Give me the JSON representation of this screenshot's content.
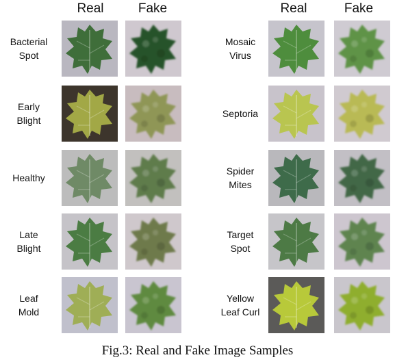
{
  "columns": {
    "real": "Real",
    "fake": "Fake"
  },
  "caption": "Fig.3: Real and Fake Image Samples",
  "left": [
    {
      "line1": "Bacterial",
      "line2": "Spot",
      "real_leaf": "#3f6e3a",
      "real_bg": "#b9b7c0",
      "fake_leaf": "#27532a",
      "fake_bg": "#cfc8cf"
    },
    {
      "line1": "Early",
      "line2": "Blight",
      "real_leaf": "#a2a846",
      "real_bg": "#3d352c",
      "fake_leaf": "#8f9656",
      "fake_bg": "#c8bcbf"
    },
    {
      "line1": "Healthy",
      "line2": "",
      "real_leaf": "#6f8a66",
      "real_bg": "#bcbcbc",
      "fake_leaf": "#5f7b4c",
      "fake_bg": "#c2c0be"
    },
    {
      "line1": "Late",
      "line2": "Blight",
      "real_leaf": "#4b7c43",
      "real_bg": "#c5c3c8",
      "fake_leaf": "#6e7a4b",
      "fake_bg": "#cfc8cc"
    },
    {
      "line1": "Leaf",
      "line2": "Mold",
      "real_leaf": "#9fae56",
      "real_bg": "#c0c0cc",
      "fake_leaf": "#5f8a3f",
      "fake_bg": "#c9c5d0"
    }
  ],
  "right": [
    {
      "line1": "Mosaic",
      "line2": "Virus",
      "real_leaf": "#4e8d3d",
      "real_bg": "#c6c4cc",
      "fake_leaf": "#5f9346",
      "fake_bg": "#cfcbd2"
    },
    {
      "line1": "Septoria",
      "line2": "",
      "real_leaf": "#b9c550",
      "real_bg": "#c8c3cb",
      "fake_leaf": "#b9ba54",
      "fake_bg": "#d0cad0"
    },
    {
      "line1": "Spider",
      "line2": "Mites",
      "real_leaf": "#3e6b4a",
      "real_bg": "#b9b8bc",
      "fake_leaf": "#436847",
      "fake_bg": "#c2bfc5"
    },
    {
      "line1": "Target",
      "line2": "Spot",
      "real_leaf": "#4d7a45",
      "real_bg": "#c6c5c9",
      "fake_leaf": "#5e8450",
      "fake_bg": "#cdc6cf"
    },
    {
      "line1": "Yellow",
      "line2": "Leaf Curl",
      "real_leaf": "#b8c93a",
      "real_bg": "#5b5a58",
      "fake_leaf": "#8fae2f",
      "fake_bg": "#c9c6cc"
    }
  ]
}
